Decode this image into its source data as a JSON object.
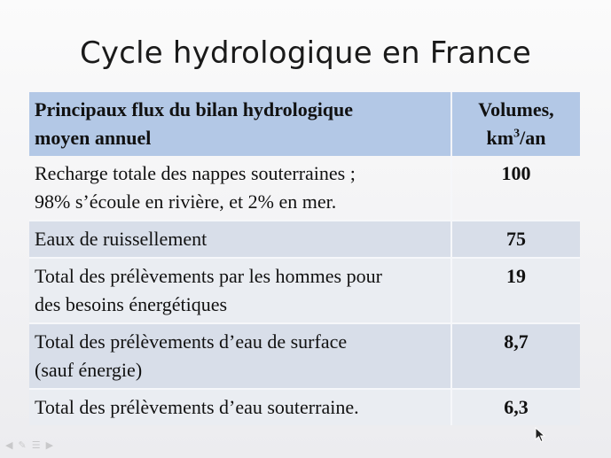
{
  "slide": {
    "title": "Cycle hydrologique en France"
  },
  "table": {
    "header": {
      "label_line1": "Principaux flux du bilan hydrologique",
      "label_line2": "moyen annuel",
      "volume_prefix": "Volumes,",
      "volume_unit_base": "km",
      "volume_unit_exp": "3",
      "volume_unit_suffix": "/an"
    },
    "rows": [
      {
        "label_line1": "Recharge totale des nappes souterraines ;",
        "label_line2": "98% s’écoule en rivière, et 2% en mer.",
        "value": "100"
      },
      {
        "label_line1": "Eaux de ruissellement",
        "label_line2": "",
        "value": "75"
      },
      {
        "label_line1": "Total des prélèvements par les hommes pour",
        "label_line2": "des besoins énergétiques",
        "value": "19"
      },
      {
        "label_line1": "Total des prélèvements d’eau de surface",
        "label_line2": "(sauf énergie)",
        "value": "8,7"
      },
      {
        "label_line1": "Total des prélèvements d’eau souterraine.",
        "label_line2": "",
        "value": "6,3"
      }
    ]
  },
  "toolbar": {
    "icons": [
      "prev-icon",
      "pen-icon",
      "menu-icon",
      "next-icon"
    ]
  },
  "colors": {
    "header_bg": "#b3c8e6",
    "tinted_bg": "#d8dee9",
    "light_bg": "#eaedf2"
  }
}
